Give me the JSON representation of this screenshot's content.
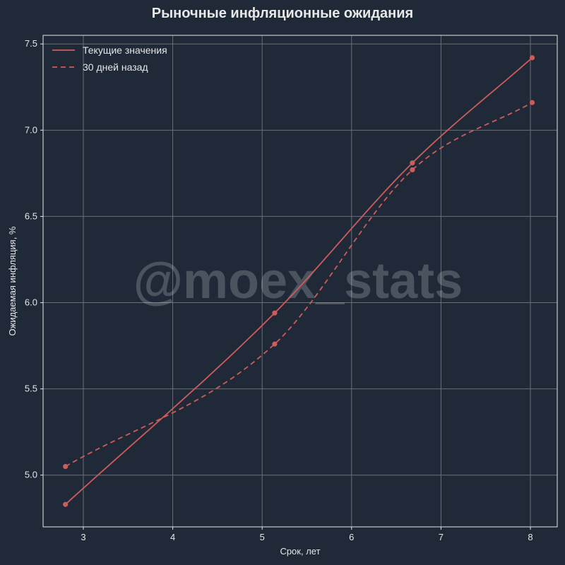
{
  "chart_data": {
    "type": "line",
    "title": "Рыночные инфляционные ожидания",
    "xlabel": "Срок, лет",
    "ylabel": "Ожидаемая инфляция, %",
    "xlim": [
      2.55,
      8.3
    ],
    "ylim": [
      4.7,
      7.55
    ],
    "xticks": [
      3,
      4,
      5,
      6,
      7,
      8
    ],
    "yticks": [
      5.0,
      5.5,
      6.0,
      6.5,
      7.0,
      7.5
    ],
    "ytick_labels": [
      "5.0",
      "5.5",
      "6.0",
      "6.5",
      "7.0",
      "7.5"
    ],
    "grid": true,
    "legend_position": "top-left",
    "series": [
      {
        "name": "Текущие значения",
        "style": "solid",
        "color": "#cd5c5c",
        "x": [
          2.8,
          5.14,
          6.68,
          8.02
        ],
        "y": [
          4.83,
          5.94,
          6.81,
          7.42
        ]
      },
      {
        "name": "30 дней назад",
        "style": "dashed",
        "color": "#cd5c5c",
        "x": [
          2.8,
          5.14,
          6.68,
          8.02
        ],
        "y": [
          5.05,
          5.76,
          6.77,
          7.16
        ]
      }
    ]
  },
  "watermark": "@moex_stats",
  "colors": {
    "background": "#1f2937",
    "grid": "#6b6f76",
    "axis": "#e6e6e6",
    "series": "#cd5c5c"
  }
}
